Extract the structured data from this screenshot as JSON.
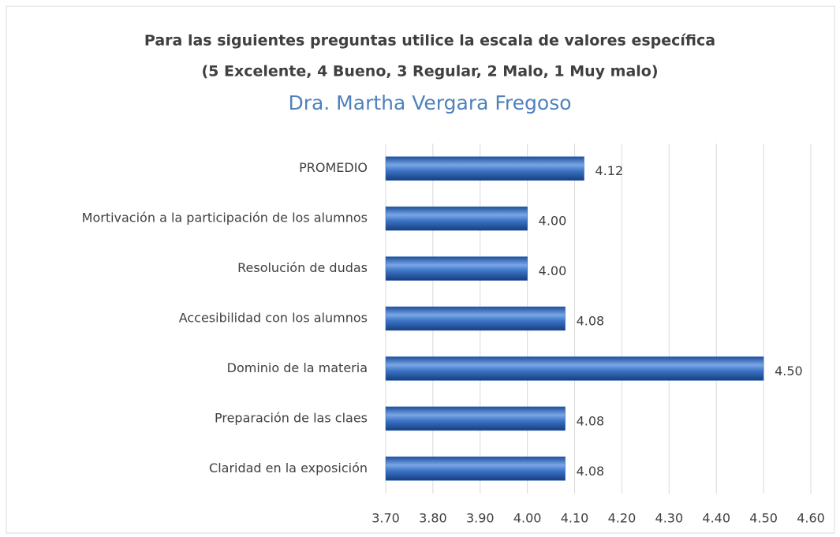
{
  "chart_data": {
    "type": "hbar",
    "title": "Para las siguientes preguntas utilice la escala de valores específica",
    "subtitle": "(5 Excelente, 4 Bueno, 3 Regular, 2 Malo, 1 Muy malo)",
    "heading": "Dra. Martha Vergara Fregoso",
    "categories": [
      "PROMEDIO",
      "Mortivación a la participación de los alumnos",
      "Resolución de dudas",
      "Accesibilidad con los alumnos",
      "Dominio de la materia",
      "Preparación de las claes",
      "Claridad en la exposición"
    ],
    "values": [
      4.12,
      4.0,
      4.0,
      4.08,
      4.5,
      4.08,
      4.08
    ],
    "value_labels": [
      "4.12",
      "4.00",
      "4.00",
      "4.08",
      "4.50",
      "4.08",
      "4.08"
    ],
    "color": "#2e66b8",
    "xlim": [
      3.7,
      4.6
    ],
    "xticks": [
      {
        "value": 3.7,
        "label": "3.70"
      },
      {
        "value": 3.8,
        "label": "3.80"
      },
      {
        "value": 3.9,
        "label": "3.90"
      },
      {
        "value": 4.0,
        "label": "4.00"
      },
      {
        "value": 4.1,
        "label": "4.10"
      },
      {
        "value": 4.2,
        "label": "4.20"
      },
      {
        "value": 4.3,
        "label": "4.30"
      },
      {
        "value": 4.4,
        "label": "4.40"
      },
      {
        "value": 4.5,
        "label": "4.50"
      },
      {
        "value": 4.6,
        "label": "4.60"
      }
    ],
    "grid": true
  }
}
